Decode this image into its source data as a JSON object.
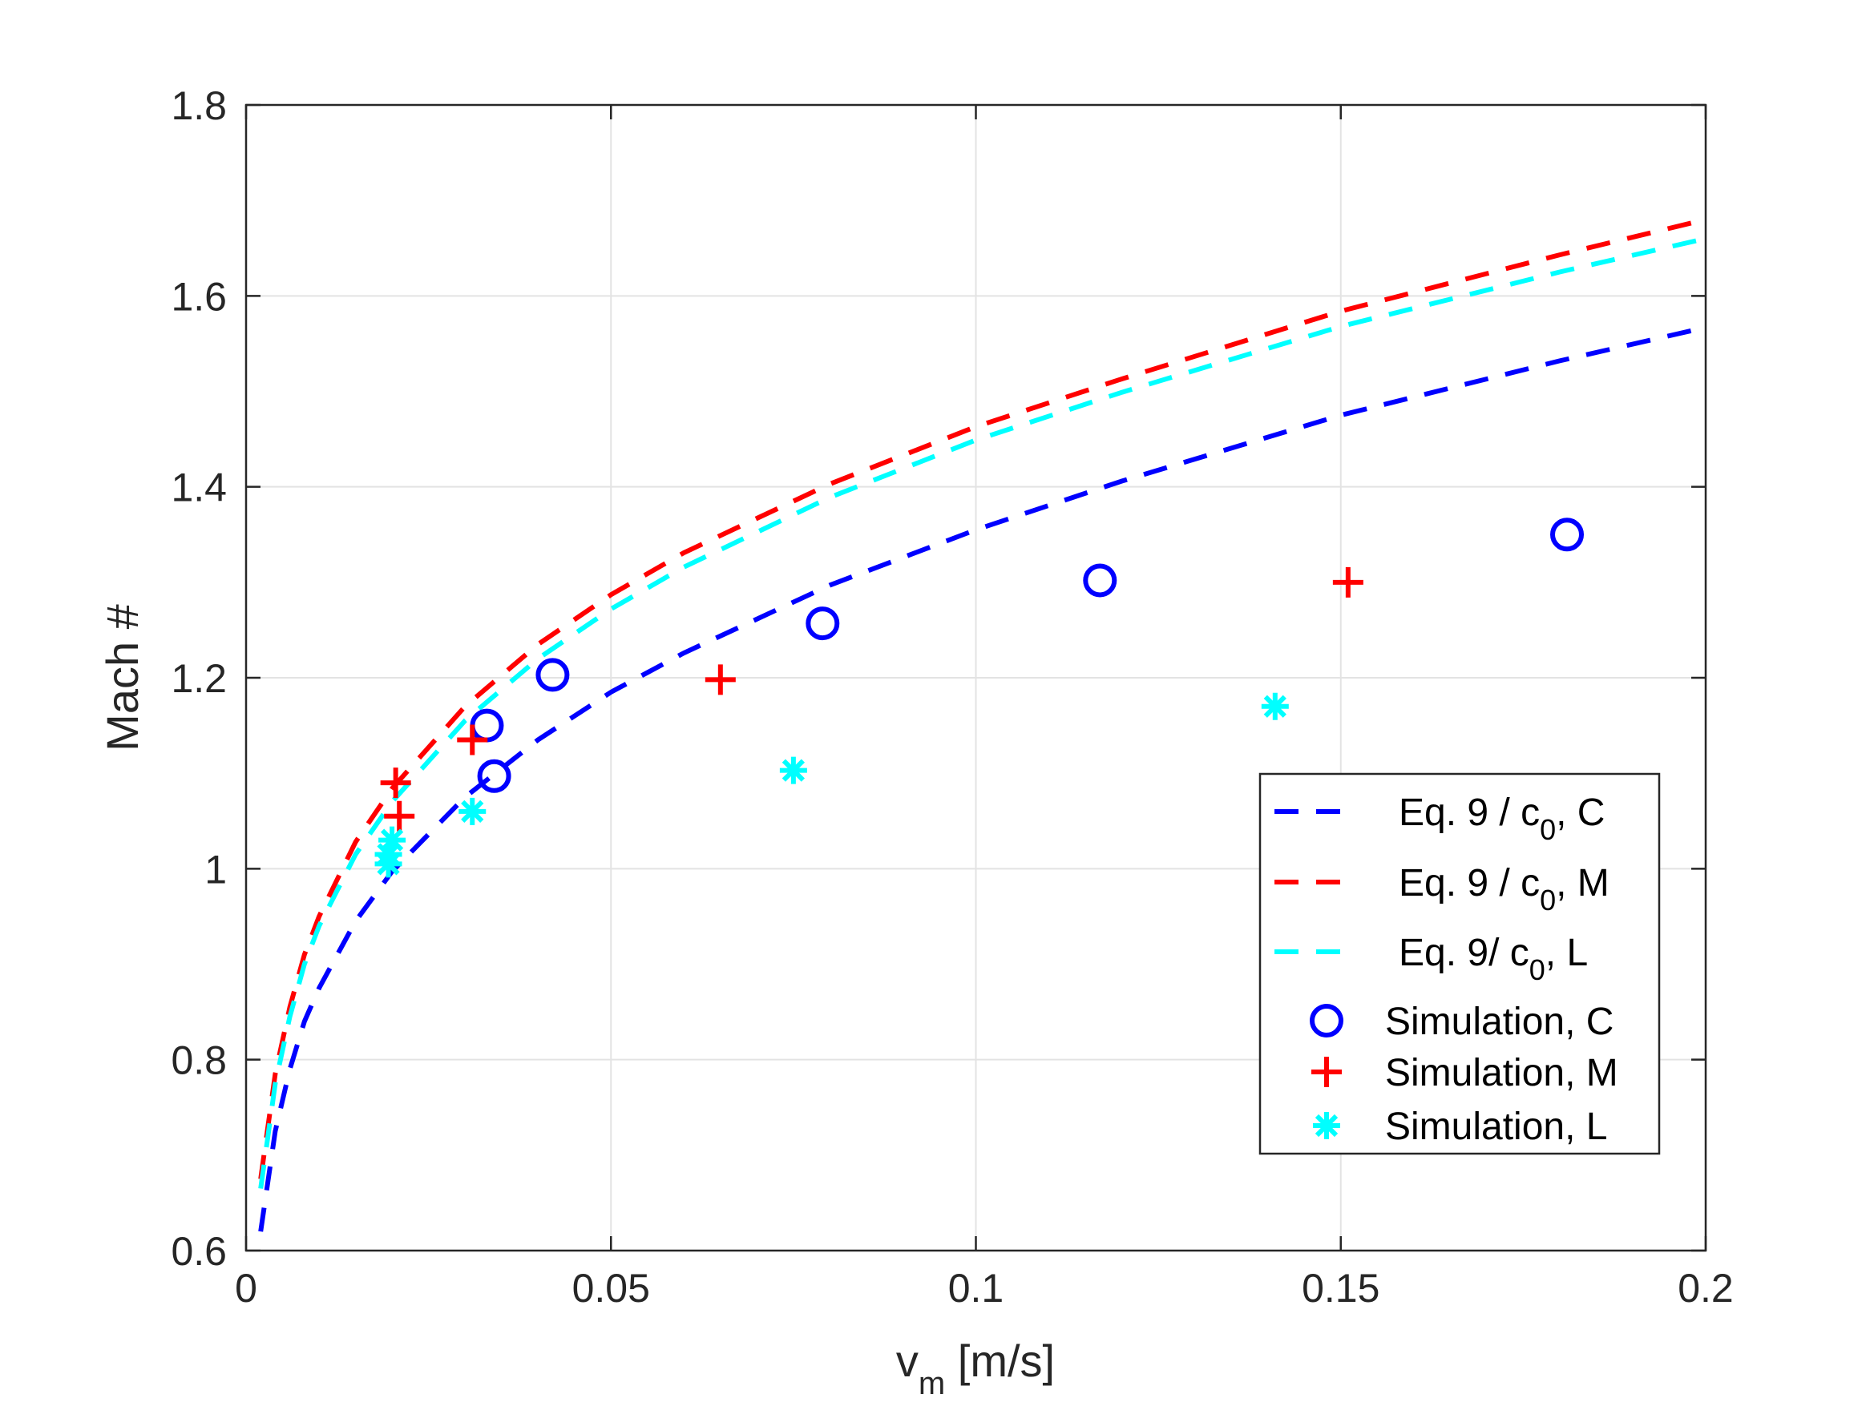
{
  "chart_data": {
    "type": "line",
    "title": "",
    "xlabel": {
      "main": "v",
      "sub": "m",
      "rest": " [m/s]"
    },
    "ylabel": "Mach #",
    "xlim": [
      0,
      0.2
    ],
    "ylim": [
      0.6,
      1.8
    ],
    "xticks": [
      0,
      0.05,
      0.1,
      0.15,
      0.2
    ],
    "xtick_labels": [
      "0",
      "0.05",
      "0.1",
      "0.15",
      "0.2"
    ],
    "yticks": [
      0.6,
      0.8,
      1.0,
      1.2,
      1.4,
      1.6,
      1.8
    ],
    "ytick_labels": [
      "0.6",
      "0.8",
      "1",
      "1.2",
      "1.4",
      "1.6",
      "1.8"
    ],
    "grid": true,
    "legend_position": "lower-right",
    "series": [
      {
        "name": "Eq. 9 / c0, C",
        "legend": {
          "pre": "Eq. 9 / c",
          "sub": "0",
          "post": ", C"
        },
        "kind": "line",
        "style": "dashed",
        "color": "#0000ff",
        "x": [
          0.002,
          0.004,
          0.006,
          0.008,
          0.01,
          0.015,
          0.02,
          0.03,
          0.04,
          0.05,
          0.06,
          0.08,
          0.1,
          0.12,
          0.15,
          0.18,
          0.2
        ],
        "y": [
          0.62,
          0.725,
          0.79,
          0.84,
          0.875,
          0.945,
          0.997,
          1.075,
          1.135,
          1.185,
          1.226,
          1.297,
          1.355,
          1.406,
          1.475,
          1.532,
          1.567
        ]
      },
      {
        "name": "Eq. 9 / c0, M",
        "legend": {
          "pre": "Eq. 9 / c",
          "sub": "0",
          "post": ", M"
        },
        "kind": "line",
        "style": "dashed",
        "color": "#ff0000",
        "x": [
          0.002,
          0.004,
          0.006,
          0.008,
          0.01,
          0.015,
          0.02,
          0.03,
          0.04,
          0.05,
          0.06,
          0.08,
          0.1,
          0.12,
          0.15,
          0.18,
          0.2
        ],
        "y": [
          0.675,
          0.785,
          0.855,
          0.91,
          0.95,
          1.028,
          1.084,
          1.17,
          1.235,
          1.287,
          1.331,
          1.403,
          1.463,
          1.513,
          1.584,
          1.643,
          1.68
        ]
      },
      {
        "name": "Eq. 9/ c0, L",
        "legend": {
          "pre": "Eq. 9/ c",
          "sub": "0",
          "post": ", L"
        },
        "kind": "line",
        "style": "dashed",
        "color": "#00ffff",
        "x": [
          0.002,
          0.004,
          0.006,
          0.008,
          0.01,
          0.015,
          0.02,
          0.03,
          0.04,
          0.05,
          0.06,
          0.08,
          0.1,
          0.12,
          0.15,
          0.18,
          0.2
        ],
        "y": [
          0.665,
          0.775,
          0.845,
          0.9,
          0.94,
          1.015,
          1.07,
          1.155,
          1.22,
          1.272,
          1.316,
          1.389,
          1.449,
          1.499,
          1.568,
          1.625,
          1.66
        ]
      },
      {
        "name": "Simulation, C",
        "legend": {
          "pre": "Simulation, C",
          "sub": "",
          "post": ""
        },
        "kind": "marker",
        "marker": "circle",
        "color": "#0000ff",
        "x": [
          0.033,
          0.034,
          0.042,
          0.079,
          0.117,
          0.181
        ],
        "y": [
          1.15,
          1.097,
          1.203,
          1.257,
          1.302,
          1.35
        ]
      },
      {
        "name": "Simulation, M",
        "legend": {
          "pre": "Simulation, M",
          "sub": "",
          "post": ""
        },
        "kind": "marker",
        "marker": "plus",
        "color": "#ff0000",
        "x": [
          0.0205,
          0.021,
          0.031,
          0.065,
          0.151
        ],
        "y": [
          1.09,
          1.055,
          1.135,
          1.198,
          1.3
        ]
      },
      {
        "name": "Simulation, L",
        "legend": {
          "pre": "Simulation, L",
          "sub": "",
          "post": ""
        },
        "kind": "marker",
        "marker": "asterisk",
        "color": "#00ffff",
        "x": [
          0.0195,
          0.02,
          0.0195,
          0.031,
          0.075,
          0.141
        ],
        "y": [
          1.005,
          1.03,
          1.015,
          1.06,
          1.103,
          1.17
        ]
      }
    ]
  }
}
